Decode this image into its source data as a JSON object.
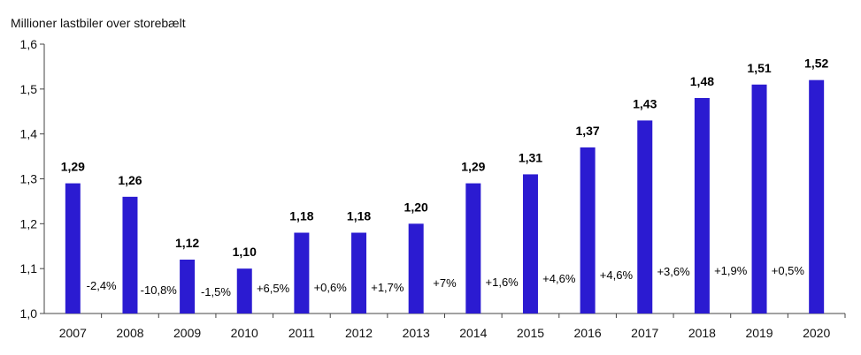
{
  "chart_data": {
    "type": "bar",
    "ylabel": "Millioner lastbiler over storebælt",
    "ylim": [
      1.0,
      1.6
    ],
    "yticks": [
      "1,0",
      "1,1",
      "1,2",
      "1,3",
      "1,4",
      "1,5",
      "1,6"
    ],
    "categories": [
      "2007",
      "2008",
      "2009",
      "2010",
      "2011",
      "2012",
      "2013",
      "2014",
      "2015",
      "2016",
      "2017",
      "2018",
      "2019",
      "2020"
    ],
    "values": [
      1.29,
      1.26,
      1.12,
      1.1,
      1.18,
      1.18,
      1.2,
      1.29,
      1.31,
      1.37,
      1.43,
      1.48,
      1.51,
      1.52
    ],
    "value_labels": [
      "1,29",
      "1,26",
      "1,12",
      "1,10",
      "1,18",
      "1,18",
      "1,20",
      "1,29",
      "1,31",
      "1,37",
      "1,43",
      "1,48",
      "1,51",
      "1,52"
    ],
    "change_labels": [
      "-2,4%",
      "-10,8%",
      "-1,5%",
      "+6,5%",
      "+0,6%",
      "+1,7%",
      "+7%",
      "+1,6%",
      "+4,6%",
      "+4,6%",
      "+3,6%",
      "+1,9%",
      "+0,5%"
    ],
    "grid": false,
    "bar_color": "#2b1bd1"
  }
}
